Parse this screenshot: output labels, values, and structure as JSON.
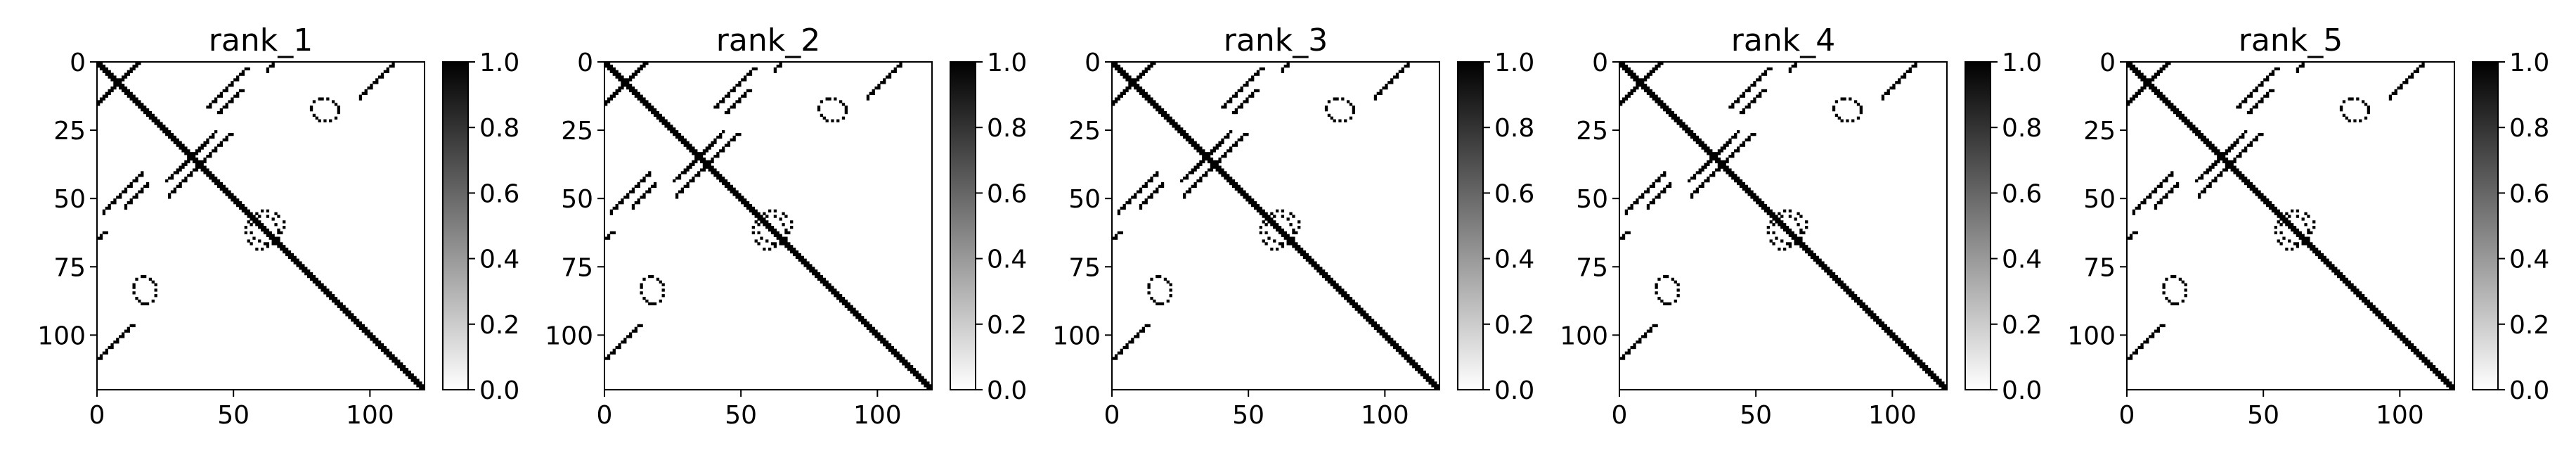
{
  "figure": {
    "colorbar_ticks": [
      "0.0",
      "0.2",
      "0.4",
      "0.6",
      "0.8",
      "1.0"
    ],
    "x_ticks": [
      "0",
      "50",
      "100"
    ],
    "y_ticks": [
      "0",
      "25",
      "50",
      "75",
      "100"
    ],
    "colormap": {
      "low": "#ffffff",
      "high": "#000000"
    }
  },
  "chart_data": [
    {
      "type": "heatmap",
      "title": "rank_1",
      "n": 120,
      "xlim": [
        0,
        120
      ],
      "ylim": [
        120,
        0
      ],
      "clim": [
        0,
        1
      ],
      "contacts": {
        "main_diagonal": true,
        "stripes": [
          [
            0,
            20,
            0,
            14
          ],
          [
            10,
            18,
            18,
            34
          ],
          [
            2,
            16,
            40,
            14
          ],
          [
            26,
            36,
            40,
            8
          ],
          [
            70,
            100,
            -38,
            18
          ],
          [
            62,
            90,
            -10,
            12
          ],
          [
            30,
            43,
            22,
            16
          ],
          [
            96,
            110,
            -4,
            16
          ]
        ],
        "rings": [
          [
            60,
            62,
            6,
            5
          ],
          [
            83,
            17,
            5,
            4
          ]
        ]
      }
    },
    {
      "type": "heatmap",
      "title": "rank_2",
      "n": 120,
      "xlim": [
        0,
        120
      ],
      "ylim": [
        120,
        0
      ],
      "clim": [
        0,
        1
      ],
      "contacts": {
        "main_diagonal": true,
        "stripes": [
          [
            0,
            20,
            0,
            14
          ],
          [
            10,
            18,
            18,
            34
          ],
          [
            2,
            16,
            40,
            14
          ],
          [
            26,
            36,
            40,
            8
          ],
          [
            70,
            100,
            -38,
            18
          ],
          [
            62,
            90,
            -10,
            12
          ],
          [
            30,
            43,
            22,
            16
          ],
          [
            96,
            110,
            -4,
            16
          ]
        ],
        "rings": [
          [
            60,
            62,
            6,
            5
          ],
          [
            83,
            17,
            5,
            4
          ]
        ]
      }
    },
    {
      "type": "heatmap",
      "title": "rank_3",
      "n": 120,
      "xlim": [
        0,
        120
      ],
      "ylim": [
        120,
        0
      ],
      "clim": [
        0,
        1
      ],
      "contacts": {
        "main_diagonal": true,
        "stripes": [
          [
            0,
            20,
            0,
            14
          ],
          [
            10,
            18,
            18,
            34
          ],
          [
            2,
            16,
            40,
            14
          ],
          [
            26,
            36,
            40,
            8
          ],
          [
            70,
            100,
            -38,
            18
          ],
          [
            62,
            90,
            -10,
            12
          ],
          [
            30,
            43,
            22,
            16
          ],
          [
            96,
            110,
            -4,
            16
          ]
        ],
        "rings": [
          [
            60,
            62,
            6,
            5
          ],
          [
            83,
            17,
            5,
            4
          ]
        ]
      }
    },
    {
      "type": "heatmap",
      "title": "rank_4",
      "n": 120,
      "xlim": [
        0,
        120
      ],
      "ylim": [
        120,
        0
      ],
      "clim": [
        0,
        1
      ],
      "contacts": {
        "main_diagonal": true,
        "stripes": [
          [
            0,
            20,
            0,
            14
          ],
          [
            10,
            18,
            18,
            34
          ],
          [
            2,
            16,
            40,
            14
          ],
          [
            26,
            36,
            40,
            8
          ],
          [
            70,
            100,
            -38,
            18
          ],
          [
            62,
            90,
            -10,
            12
          ],
          [
            30,
            43,
            22,
            16
          ],
          [
            96,
            110,
            -4,
            16
          ]
        ],
        "rings": [
          [
            60,
            62,
            6,
            5
          ],
          [
            83,
            17,
            5,
            4
          ]
        ]
      }
    },
    {
      "type": "heatmap",
      "title": "rank_5",
      "n": 120,
      "xlim": [
        0,
        120
      ],
      "ylim": [
        120,
        0
      ],
      "clim": [
        0,
        1
      ],
      "contacts": {
        "main_diagonal": true,
        "stripes": [
          [
            0,
            20,
            0,
            14
          ],
          [
            10,
            18,
            18,
            34
          ],
          [
            2,
            16,
            40,
            14
          ],
          [
            26,
            36,
            40,
            8
          ],
          [
            70,
            100,
            -38,
            18
          ],
          [
            62,
            90,
            -10,
            12
          ],
          [
            30,
            43,
            22,
            16
          ],
          [
            96,
            110,
            -4,
            16
          ]
        ],
        "rings": [
          [
            60,
            62,
            6,
            5
          ],
          [
            83,
            17,
            5,
            4
          ]
        ]
      }
    }
  ]
}
